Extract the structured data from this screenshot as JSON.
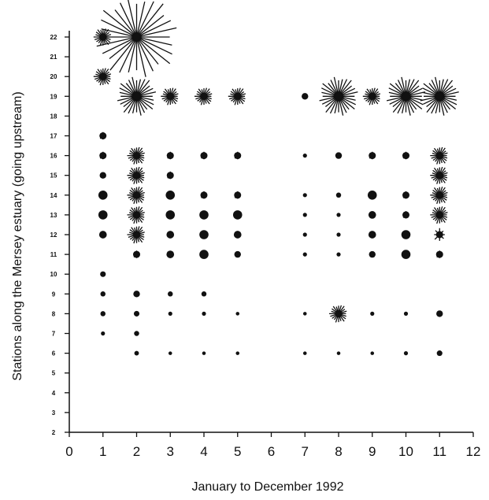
{
  "chart_data": {
    "type": "scatter",
    "xlabel": "January to December 1992",
    "ylabel": "Stations along the Mersey estuary (going upstream)",
    "xlim": [
      0,
      12
    ],
    "ylim": [
      2,
      22
    ],
    "xticks": [
      "0",
      "1",
      "2",
      "3",
      "4",
      "5",
      "6",
      "7",
      "8",
      "9",
      "10",
      "11",
      "12"
    ],
    "yticks": [
      "2",
      "3",
      "4",
      "5",
      "6",
      "7",
      "8",
      "9",
      "10",
      "11",
      "12",
      "13",
      "14",
      "15",
      "16",
      "17",
      "18",
      "19",
      "20",
      "21",
      "22"
    ],
    "grid": false,
    "legend": "none",
    "marker_color": "#111111",
    "points": [
      {
        "x": 1,
        "y": 22,
        "size": 3
      },
      {
        "x": 2,
        "y": 22,
        "size": 6
      },
      {
        "x": 1,
        "y": 20,
        "size": 3
      },
      {
        "x": 2,
        "y": 19,
        "size": 4
      },
      {
        "x": 3,
        "y": 19,
        "size": 3
      },
      {
        "x": 4,
        "y": 19,
        "size": 3
      },
      {
        "x": 5,
        "y": 19,
        "size": 3
      },
      {
        "x": 7,
        "y": 19,
        "size": 1
      },
      {
        "x": 8,
        "y": 19,
        "size": 4
      },
      {
        "x": 9,
        "y": 19,
        "size": 3
      },
      {
        "x": 10,
        "y": 19,
        "size": 4
      },
      {
        "x": 11,
        "y": 19,
        "size": 4
      },
      {
        "x": 1,
        "y": 17,
        "size": 2
      },
      {
        "x": 1,
        "y": 16,
        "size": 2
      },
      {
        "x": 2,
        "y": 16,
        "size": 3
      },
      {
        "x": 3,
        "y": 16,
        "size": 2
      },
      {
        "x": 4,
        "y": 16,
        "size": 2
      },
      {
        "x": 5,
        "y": 16,
        "size": 2
      },
      {
        "x": 7,
        "y": 16,
        "size": 0.5
      },
      {
        "x": 8,
        "y": 16,
        "size": 1
      },
      {
        "x": 9,
        "y": 16,
        "size": 2
      },
      {
        "x": 10,
        "y": 16,
        "size": 2
      },
      {
        "x": 11,
        "y": 16,
        "size": 3
      },
      {
        "x": 1,
        "y": 15,
        "size": 1
      },
      {
        "x": 2,
        "y": 15,
        "size": 3
      },
      {
        "x": 3,
        "y": 15,
        "size": 2
      },
      {
        "x": 11,
        "y": 15,
        "size": 3
      },
      {
        "x": 1,
        "y": 14,
        "size": 1.5
      },
      {
        "x": 2,
        "y": 14,
        "size": 3
      },
      {
        "x": 3,
        "y": 14,
        "size": 1.5
      },
      {
        "x": 4,
        "y": 14,
        "size": 2
      },
      {
        "x": 5,
        "y": 14,
        "size": 2
      },
      {
        "x": 7,
        "y": 14,
        "size": 0.5
      },
      {
        "x": 8,
        "y": 14,
        "size": 0.7
      },
      {
        "x": 9,
        "y": 14,
        "size": 1.5
      },
      {
        "x": 10,
        "y": 14,
        "size": 2
      },
      {
        "x": 11,
        "y": 14,
        "size": 3
      },
      {
        "x": 1,
        "y": 13,
        "size": 1.5
      },
      {
        "x": 2,
        "y": 13,
        "size": 3
      },
      {
        "x": 3,
        "y": 13,
        "size": 1.5
      },
      {
        "x": 4,
        "y": 13,
        "size": 1.5
      },
      {
        "x": 5,
        "y": 13,
        "size": 1.5
      },
      {
        "x": 7,
        "y": 13,
        "size": 0.5
      },
      {
        "x": 8,
        "y": 13,
        "size": 0.5
      },
      {
        "x": 9,
        "y": 13,
        "size": 1.2
      },
      {
        "x": 10,
        "y": 13,
        "size": 2
      },
      {
        "x": 11,
        "y": 13,
        "size": 3
      },
      {
        "x": 1,
        "y": 12,
        "size": 1.2
      },
      {
        "x": 2,
        "y": 12,
        "size": 3
      },
      {
        "x": 3,
        "y": 12,
        "size": 1.2
      },
      {
        "x": 4,
        "y": 12,
        "size": 1.5
      },
      {
        "x": 5,
        "y": 12,
        "size": 1.2
      },
      {
        "x": 7,
        "y": 12,
        "size": 0.5
      },
      {
        "x": 8,
        "y": 12,
        "size": 0.5
      },
      {
        "x": 9,
        "y": 12,
        "size": 1.2
      },
      {
        "x": 10,
        "y": 12,
        "size": 1.5
      },
      {
        "x": 11,
        "y": 12,
        "size": 2.5
      },
      {
        "x": 2,
        "y": 11,
        "size": 2
      },
      {
        "x": 3,
        "y": 11,
        "size": 1.2
      },
      {
        "x": 4,
        "y": 11,
        "size": 1.5
      },
      {
        "x": 5,
        "y": 11,
        "size": 1
      },
      {
        "x": 7,
        "y": 11,
        "size": 0.5
      },
      {
        "x": 8,
        "y": 11,
        "size": 0.5
      },
      {
        "x": 9,
        "y": 11,
        "size": 1
      },
      {
        "x": 10,
        "y": 11,
        "size": 1.5
      },
      {
        "x": 11,
        "y": 11,
        "size": 2
      },
      {
        "x": 1,
        "y": 10,
        "size": 0.8
      },
      {
        "x": 1,
        "y": 9,
        "size": 0.7
      },
      {
        "x": 2,
        "y": 9,
        "size": 1
      },
      {
        "x": 3,
        "y": 9,
        "size": 0.7
      },
      {
        "x": 4,
        "y": 9,
        "size": 0.7
      },
      {
        "x": 1,
        "y": 8,
        "size": 0.7
      },
      {
        "x": 2,
        "y": 8,
        "size": 0.8
      },
      {
        "x": 3,
        "y": 8,
        "size": 0.5
      },
      {
        "x": 4,
        "y": 8,
        "size": 0.5
      },
      {
        "x": 5,
        "y": 8,
        "size": 0.4
      },
      {
        "x": 7,
        "y": 8,
        "size": 0.4
      },
      {
        "x": 8,
        "y": 8,
        "size": 3
      },
      {
        "x": 9,
        "y": 8,
        "size": 0.5
      },
      {
        "x": 10,
        "y": 8,
        "size": 0.5
      },
      {
        "x": 11,
        "y": 8,
        "size": 1
      },
      {
        "x": 1,
        "y": 7,
        "size": 0.5
      },
      {
        "x": 2,
        "y": 7,
        "size": 0.7
      },
      {
        "x": 2,
        "y": 6,
        "size": 0.6
      },
      {
        "x": 3,
        "y": 6,
        "size": 0.4
      },
      {
        "x": 4,
        "y": 6,
        "size": 0.4
      },
      {
        "x": 5,
        "y": 6,
        "size": 0.4
      },
      {
        "x": 7,
        "y": 6,
        "size": 0.4
      },
      {
        "x": 8,
        "y": 6,
        "size": 0.4
      },
      {
        "x": 9,
        "y": 6,
        "size": 0.4
      },
      {
        "x": 10,
        "y": 6,
        "size": 0.5
      },
      {
        "x": 11,
        "y": 6,
        "size": 0.8
      }
    ]
  }
}
